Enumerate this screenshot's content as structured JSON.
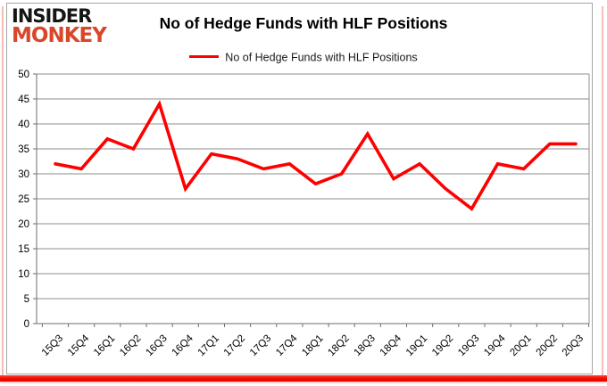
{
  "brand": {
    "line1": "INSIDER",
    "line2": "MONKEY",
    "color_line1": "#151515",
    "color_line2": "#d9472b"
  },
  "header": {
    "title": "No of Hedge Funds with HLF Positions"
  },
  "legend": {
    "label": "No of Hedge Funds with HLF Positions",
    "line_color": "#ff0000",
    "position": "top-center"
  },
  "chart_data": {
    "type": "line",
    "title": "No of Hedge Funds with HLF Positions",
    "xlabel": "",
    "ylabel": "",
    "categories": [
      "15Q3",
      "15Q4",
      "16Q1",
      "16Q2",
      "16Q3",
      "16Q4",
      "17Q1",
      "17Q2",
      "17Q3",
      "17Q4",
      "18Q1",
      "18Q2",
      "18Q3",
      "18Q4",
      "19Q1",
      "19Q2",
      "19Q3",
      "19Q4",
      "20Q1",
      "20Q2",
      "20Q3"
    ],
    "series": [
      {
        "name": "No of Hedge Funds with HLF Positions",
        "color": "#ff0000",
        "values": [
          32,
          31,
          37,
          35,
          44,
          27,
          34,
          33,
          31,
          32,
          28,
          30,
          38,
          29,
          32,
          27,
          23,
          32,
          31,
          36,
          36
        ]
      }
    ],
    "ylim": [
      0,
      50
    ],
    "ytick_step": 5,
    "ytick_labels": [
      "0",
      "5",
      "10",
      "15",
      "20",
      "25",
      "30",
      "35",
      "40",
      "45",
      "50"
    ],
    "grid": true,
    "gridline_color": "#8e8e8e",
    "axis_color": "#6e6e6e",
    "tick_label_color": "#000000",
    "legend_position": "top"
  },
  "frame": {
    "outer_border_color": "#a6a6a6",
    "side_accent_color": "#f6beb6",
    "bottom_bar_color": "#f40f02"
  }
}
